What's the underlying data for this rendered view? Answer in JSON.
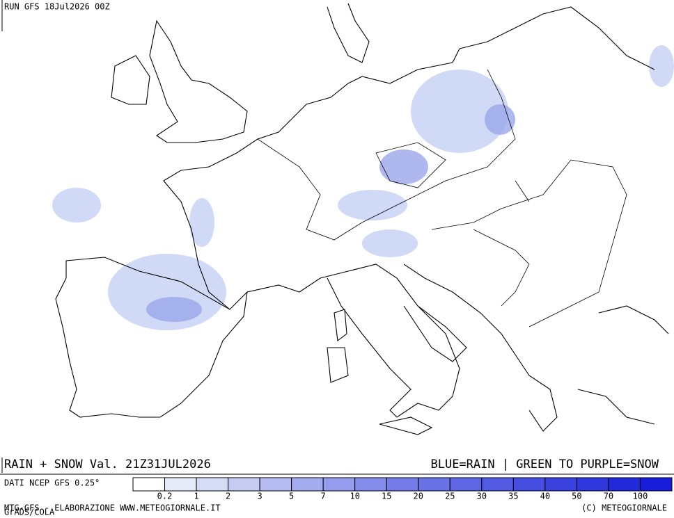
{
  "header": {
    "run": "RUN GFS 18Jul2026 00Z"
  },
  "footer": {
    "title_left": "RAIN + SNOW Val. 21Z31JUL2026",
    "title_right": "BLUE=RAIN | GREEN TO PURPLE=SNOW",
    "credit_left": "MTG-GFS - ELABORAZIONE WWW.METEOGIORNALE.IT",
    "credit_right": "(C) METEOGIORNALE",
    "grads": "GrADS/COLA"
  },
  "legend": {
    "source": "DATI NCEP GFS 0.25°",
    "labels": [
      0.2,
      1,
      2,
      3,
      5,
      7,
      10,
      15,
      20,
      25,
      30,
      35,
      40,
      50,
      70,
      100
    ],
    "colors": [
      "#ffffff",
      "#e4ecfa",
      "#d4dcf6",
      "#c4ccf4",
      "#b4bcf2",
      "#a4acf0",
      "#949cee",
      "#848cec",
      "#747ce9",
      "#6a72e8",
      "#5e66e6",
      "#525ae4",
      "#464ee2",
      "#3a42e0",
      "#2e36de",
      "#2229dc",
      "#161ddb"
    ]
  }
}
